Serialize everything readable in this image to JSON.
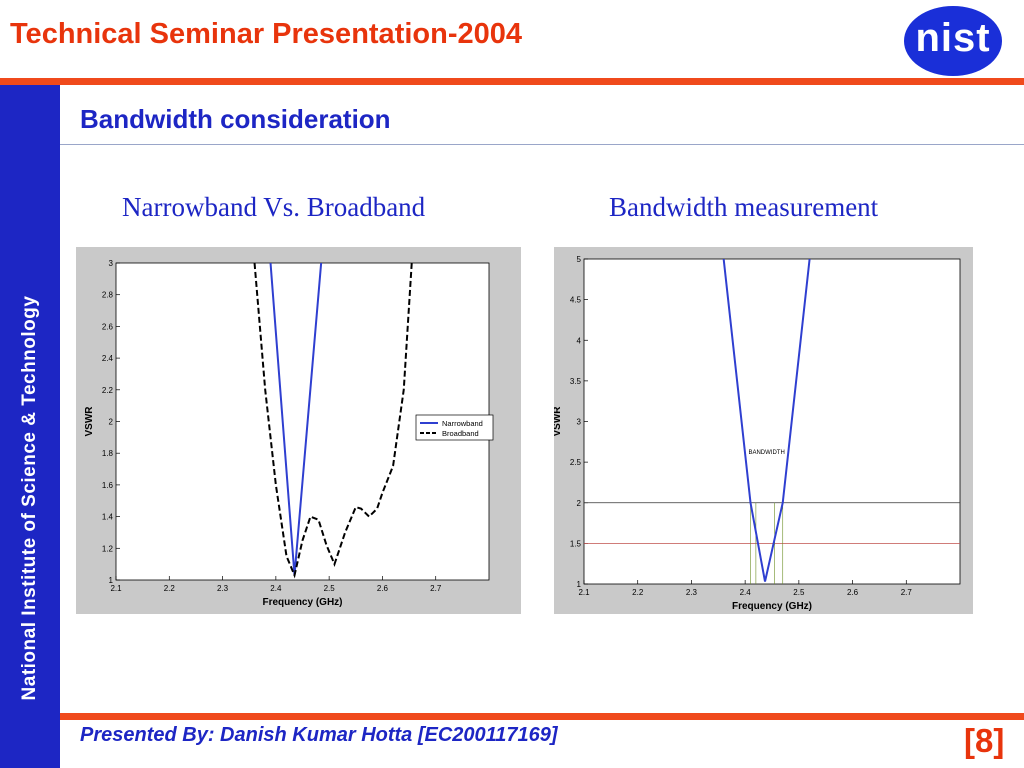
{
  "header": {
    "title": "Technical Seminar Presentation-2004",
    "logo_text": "nist"
  },
  "sidebar": {
    "text": "National Institute of Science & Technology"
  },
  "section": {
    "title": "Bandwidth consideration"
  },
  "captions": {
    "left": "Narrowband Vs. Broadband",
    "right": "Bandwidth measurement"
  },
  "footer": {
    "presenter": "Presented By: Danish Kumar Hotta [EC200117169]",
    "page": "[8]"
  },
  "colors": {
    "accent_orange": "#f04a1c",
    "brand_blue": "#1d26c4",
    "narrowband": "#2f3fd0",
    "broadband": "#000000"
  },
  "chart_data": [
    {
      "type": "line",
      "xlabel": "Frequency (GHz)",
      "ylabel": "VSWR",
      "xlim": [
        2.1,
        2.8
      ],
      "ylim": [
        1,
        3
      ],
      "xticks": [
        "2.1",
        "2.2",
        "2.3",
        "2.4",
        "2.5",
        "2.6",
        "2.7"
      ],
      "yticks": [
        "1",
        "1.2",
        "1.4",
        "1.6",
        "1.8",
        "2",
        "2.2",
        "2.4",
        "2.6",
        "2.8",
        "3"
      ],
      "legend": "right",
      "series": [
        {
          "name": "Narrowband",
          "style": "solid",
          "x": [
            2.39,
            2.435,
            2.485
          ],
          "y": [
            3.0,
            1.03,
            3.0
          ]
        },
        {
          "name": "Broadband",
          "style": "dashed",
          "x": [
            2.36,
            2.38,
            2.4,
            2.42,
            2.435,
            2.45,
            2.465,
            2.48,
            2.495,
            2.51,
            2.53,
            2.55,
            2.56,
            2.575,
            2.59,
            2.6,
            2.62,
            2.64,
            2.655
          ],
          "y": [
            3.0,
            2.2,
            1.6,
            1.15,
            1.03,
            1.25,
            1.4,
            1.38,
            1.22,
            1.1,
            1.3,
            1.46,
            1.45,
            1.4,
            1.45,
            1.55,
            1.72,
            2.2,
            3.0
          ]
        }
      ]
    },
    {
      "type": "line",
      "xlabel": "Frequency (GHz)",
      "ylabel": "VSWR",
      "xlim": [
        2.1,
        2.8
      ],
      "ylim": [
        1,
        5
      ],
      "xticks": [
        "2.1",
        "2.2",
        "2.3",
        "2.4",
        "2.5",
        "2.6",
        "2.7"
      ],
      "yticks": [
        "1",
        "1.5",
        "2",
        "2.5",
        "3",
        "3.5",
        "4",
        "4.5",
        "5"
      ],
      "annotation": "BANDWIDTH",
      "hlines": [
        2.0,
        1.5
      ],
      "vlines": [
        2.41,
        2.42,
        2.455,
        2.47
      ],
      "series": [
        {
          "style": "solid",
          "x": [
            2.36,
            2.41,
            2.437,
            2.47,
            2.52
          ],
          "y": [
            5.0,
            2.0,
            1.03,
            2.0,
            5.0
          ]
        }
      ]
    }
  ]
}
